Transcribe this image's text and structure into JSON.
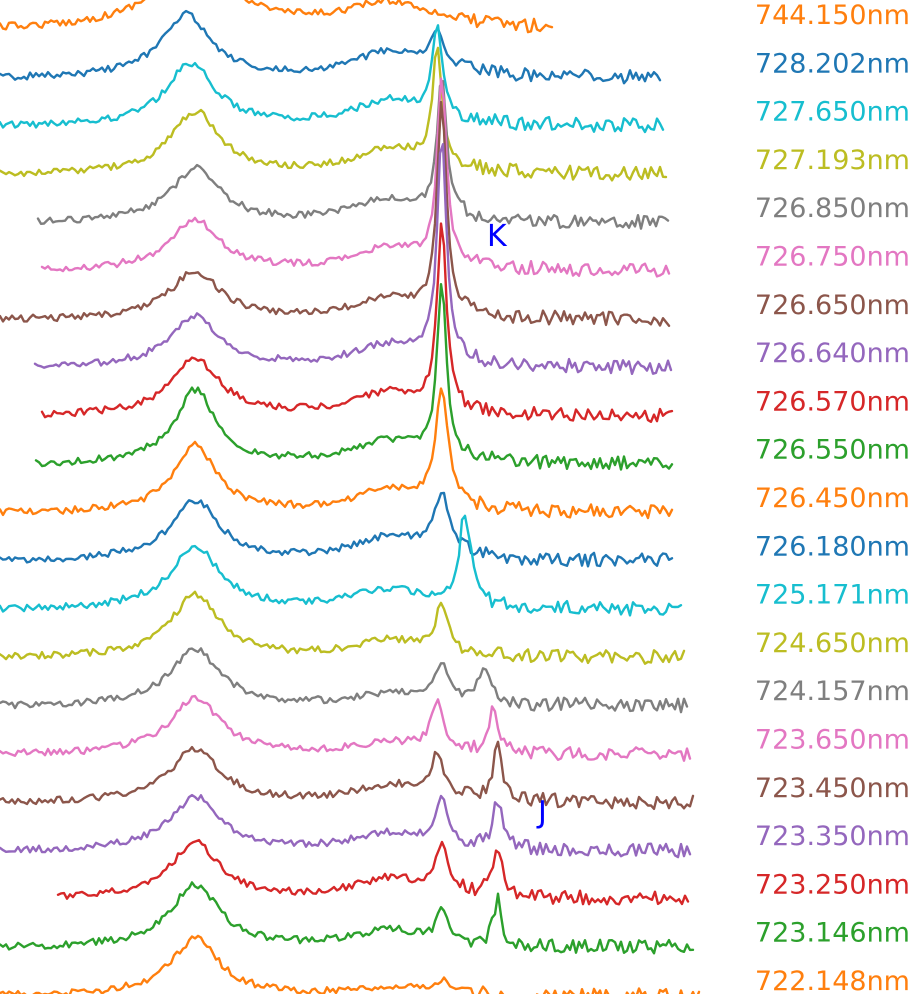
{
  "chart_data": {
    "type": "line",
    "title": "",
    "xlabel": "",
    "ylabel": "",
    "stacked_offset": true,
    "grid": false,
    "axes_visible": false,
    "annotations": [
      {
        "text": "K",
        "color": "#0000ff"
      },
      {
        "text": "J",
        "color": "#0000ff"
      }
    ],
    "series": [
      {
        "name": "744.150nm",
        "color": "#ff7f0e",
        "peaks": [
          [
            0.21,
            1.0,
            0.05
          ],
          [
            0.42,
            0.45,
            0.06
          ]
        ]
      },
      {
        "name": "728.202nm",
        "color": "#1f77b4",
        "peaks": [
          [
            0.2,
            1.0,
            0.03
          ],
          [
            0.42,
            0.45,
            0.05
          ],
          [
            0.47,
            0.6,
            0.01
          ]
        ]
      },
      {
        "name": "727.650nm",
        "color": "#17becf",
        "peaks": [
          [
            0.205,
            1.0,
            0.03
          ],
          [
            0.42,
            0.45,
            0.05
          ],
          [
            0.47,
            1.6,
            0.006
          ]
        ]
      },
      {
        "name": "727.193nm",
        "color": "#bcbd22",
        "peaks": [
          [
            0.21,
            1.0,
            0.03
          ],
          [
            0.42,
            0.45,
            0.05
          ],
          [
            0.47,
            2.0,
            0.006
          ]
        ]
      },
      {
        "name": "726.850nm",
        "color": "#7f7f7f",
        "peaks": [
          [
            0.21,
            0.85,
            0.03
          ],
          [
            0.42,
            0.4,
            0.05
          ],
          [
            0.475,
            2.4,
            0.006
          ]
        ]
      },
      {
        "name": "726.750nm",
        "color": "#e377c2",
        "peaks": [
          [
            0.21,
            0.8,
            0.03
          ],
          [
            0.42,
            0.4,
            0.05
          ],
          [
            0.475,
            3.2,
            0.006
          ]
        ]
      },
      {
        "name": "726.650nm",
        "color": "#8c564b",
        "peaks": [
          [
            0.21,
            0.75,
            0.03
          ],
          [
            0.42,
            0.35,
            0.05
          ],
          [
            0.475,
            3.6,
            0.006
          ]
        ]
      },
      {
        "name": "726.640nm",
        "color": "#9467bd",
        "peaks": [
          [
            0.21,
            0.8,
            0.03
          ],
          [
            0.42,
            0.4,
            0.05
          ],
          [
            0.475,
            3.8,
            0.006
          ]
        ]
      },
      {
        "name": "726.570nm",
        "color": "#d62728",
        "peaks": [
          [
            0.21,
            0.9,
            0.03
          ],
          [
            0.42,
            0.4,
            0.05
          ],
          [
            0.475,
            3.2,
            0.006
          ]
        ]
      },
      {
        "name": "726.550nm",
        "color": "#2ca02c",
        "peaks": [
          [
            0.21,
            1.2,
            0.025
          ],
          [
            0.42,
            0.4,
            0.05
          ],
          [
            0.475,
            3.0,
            0.006
          ]
        ]
      },
      {
        "name": "726.450nm",
        "color": "#ff7f0e",
        "peaks": [
          [
            0.21,
            1.1,
            0.025
          ],
          [
            0.42,
            0.4,
            0.05
          ],
          [
            0.475,
            2.0,
            0.008
          ]
        ]
      },
      {
        "name": "726.180nm",
        "color": "#1f77b4",
        "peaks": [
          [
            0.21,
            0.95,
            0.03
          ],
          [
            0.42,
            0.4,
            0.05
          ],
          [
            0.475,
            1.0,
            0.01
          ]
        ]
      },
      {
        "name": "725.171nm",
        "color": "#17becf",
        "peaks": [
          [
            0.21,
            1.0,
            0.03
          ],
          [
            0.42,
            0.35,
            0.05
          ],
          [
            0.5,
            1.6,
            0.007
          ]
        ]
      },
      {
        "name": "724.650nm",
        "color": "#bcbd22",
        "peaks": [
          [
            0.21,
            1.0,
            0.03
          ],
          [
            0.42,
            0.3,
            0.05
          ],
          [
            0.475,
            0.8,
            0.008
          ]
        ]
      },
      {
        "name": "724.157nm",
        "color": "#7f7f7f",
        "peaks": [
          [
            0.21,
            0.9,
            0.03
          ],
          [
            0.42,
            0.2,
            0.05
          ],
          [
            0.475,
            0.6,
            0.01
          ],
          [
            0.52,
            0.5,
            0.01
          ]
        ]
      },
      {
        "name": "723.650nm",
        "color": "#e377c2",
        "peaks": [
          [
            0.21,
            0.9,
            0.03
          ],
          [
            0.42,
            0.2,
            0.05
          ],
          [
            0.47,
            0.8,
            0.008
          ],
          [
            0.53,
            0.7,
            0.006
          ]
        ]
      },
      {
        "name": "723.450nm",
        "color": "#8c564b",
        "peaks": [
          [
            0.21,
            0.85,
            0.03
          ],
          [
            0.42,
            0.3,
            0.05
          ],
          [
            0.47,
            0.7,
            0.008
          ],
          [
            0.535,
            0.9,
            0.006
          ]
        ]
      },
      {
        "name": "723.350nm",
        "color": "#9467bd",
        "peaks": [
          [
            0.21,
            0.85,
            0.03
          ],
          [
            0.42,
            0.3,
            0.05
          ],
          [
            0.475,
            0.75,
            0.008
          ],
          [
            0.535,
            0.8,
            0.006
          ]
        ]
      },
      {
        "name": "723.250nm",
        "color": "#d62728",
        "peaks": [
          [
            0.21,
            0.9,
            0.03
          ],
          [
            0.42,
            0.35,
            0.05
          ],
          [
            0.475,
            0.8,
            0.008
          ],
          [
            0.535,
            0.9,
            0.006
          ]
        ]
      },
      {
        "name": "723.146nm",
        "color": "#2ca02c",
        "peaks": [
          [
            0.21,
            1.0,
            0.03
          ],
          [
            0.42,
            0.3,
            0.05
          ],
          [
            0.475,
            0.6,
            0.006
          ],
          [
            0.535,
            0.8,
            0.005
          ]
        ]
      },
      {
        "name": "722.148nm",
        "color": "#ff7f0e",
        "peaks": [
          [
            0.21,
            0.9,
            0.03
          ],
          [
            0.42,
            0.15,
            0.05
          ],
          [
            0.475,
            0.2,
            0.01
          ]
        ]
      }
    ]
  }
}
